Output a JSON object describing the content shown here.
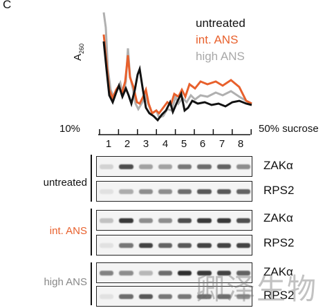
{
  "panel_letter": "C",
  "legend": [
    {
      "label": "untreated",
      "color": "#111111"
    },
    {
      "label": "int. ANS",
      "color": "#e8602c"
    },
    {
      "label": "high ANS",
      "color": "#a8a8a8"
    }
  ],
  "profile": {
    "ylabel_main": "A",
    "ylabel_sub": "260",
    "gradient_low": "10%",
    "gradient_high": "50% sucrose",
    "fractions": [
      "1",
      "2",
      "3",
      "4",
      "5",
      "6",
      "7",
      "8"
    ]
  },
  "conditions": [
    {
      "label": "untreated",
      "color": "#222222"
    },
    {
      "label": "int. ANS",
      "color": "#e8602c"
    },
    {
      "label": "high ANS",
      "color": "#888888"
    }
  ],
  "proteins": [
    "ZAKα",
    "RPS2"
  ],
  "blots": [
    {
      "condition": "untreated",
      "protein": "ZAKα",
      "intensities": [
        0.12,
        0.75,
        0.35,
        0.35,
        0.55,
        0.6,
        0.65,
        0.45
      ]
    },
    {
      "condition": "untreated",
      "protein": "RPS2",
      "intensities": [
        0.05,
        0.3,
        0.45,
        0.45,
        0.6,
        0.7,
        0.7,
        0.65
      ]
    },
    {
      "condition": "int. ANS",
      "protein": "ZAKα",
      "intensities": [
        0.2,
        0.85,
        0.45,
        0.45,
        0.75,
        0.85,
        0.85,
        0.75
      ]
    },
    {
      "condition": "int. ANS",
      "protein": "RPS2",
      "intensities": [
        0.05,
        0.55,
        0.8,
        0.65,
        0.7,
        0.8,
        0.8,
        0.8
      ]
    },
    {
      "condition": "high ANS",
      "protein": "ZAKα",
      "intensities": [
        0.5,
        0.45,
        0.25,
        0.6,
        0.9,
        0.85,
        0.8,
        0.65
      ]
    },
    {
      "condition": "high ANS",
      "protein": "RPS2",
      "intensities": [
        0.05,
        0.6,
        0.7,
        0.55,
        0.55,
        0.6,
        0.6,
        0.45
      ]
    }
  ],
  "watermark": "卿泽生物"
}
